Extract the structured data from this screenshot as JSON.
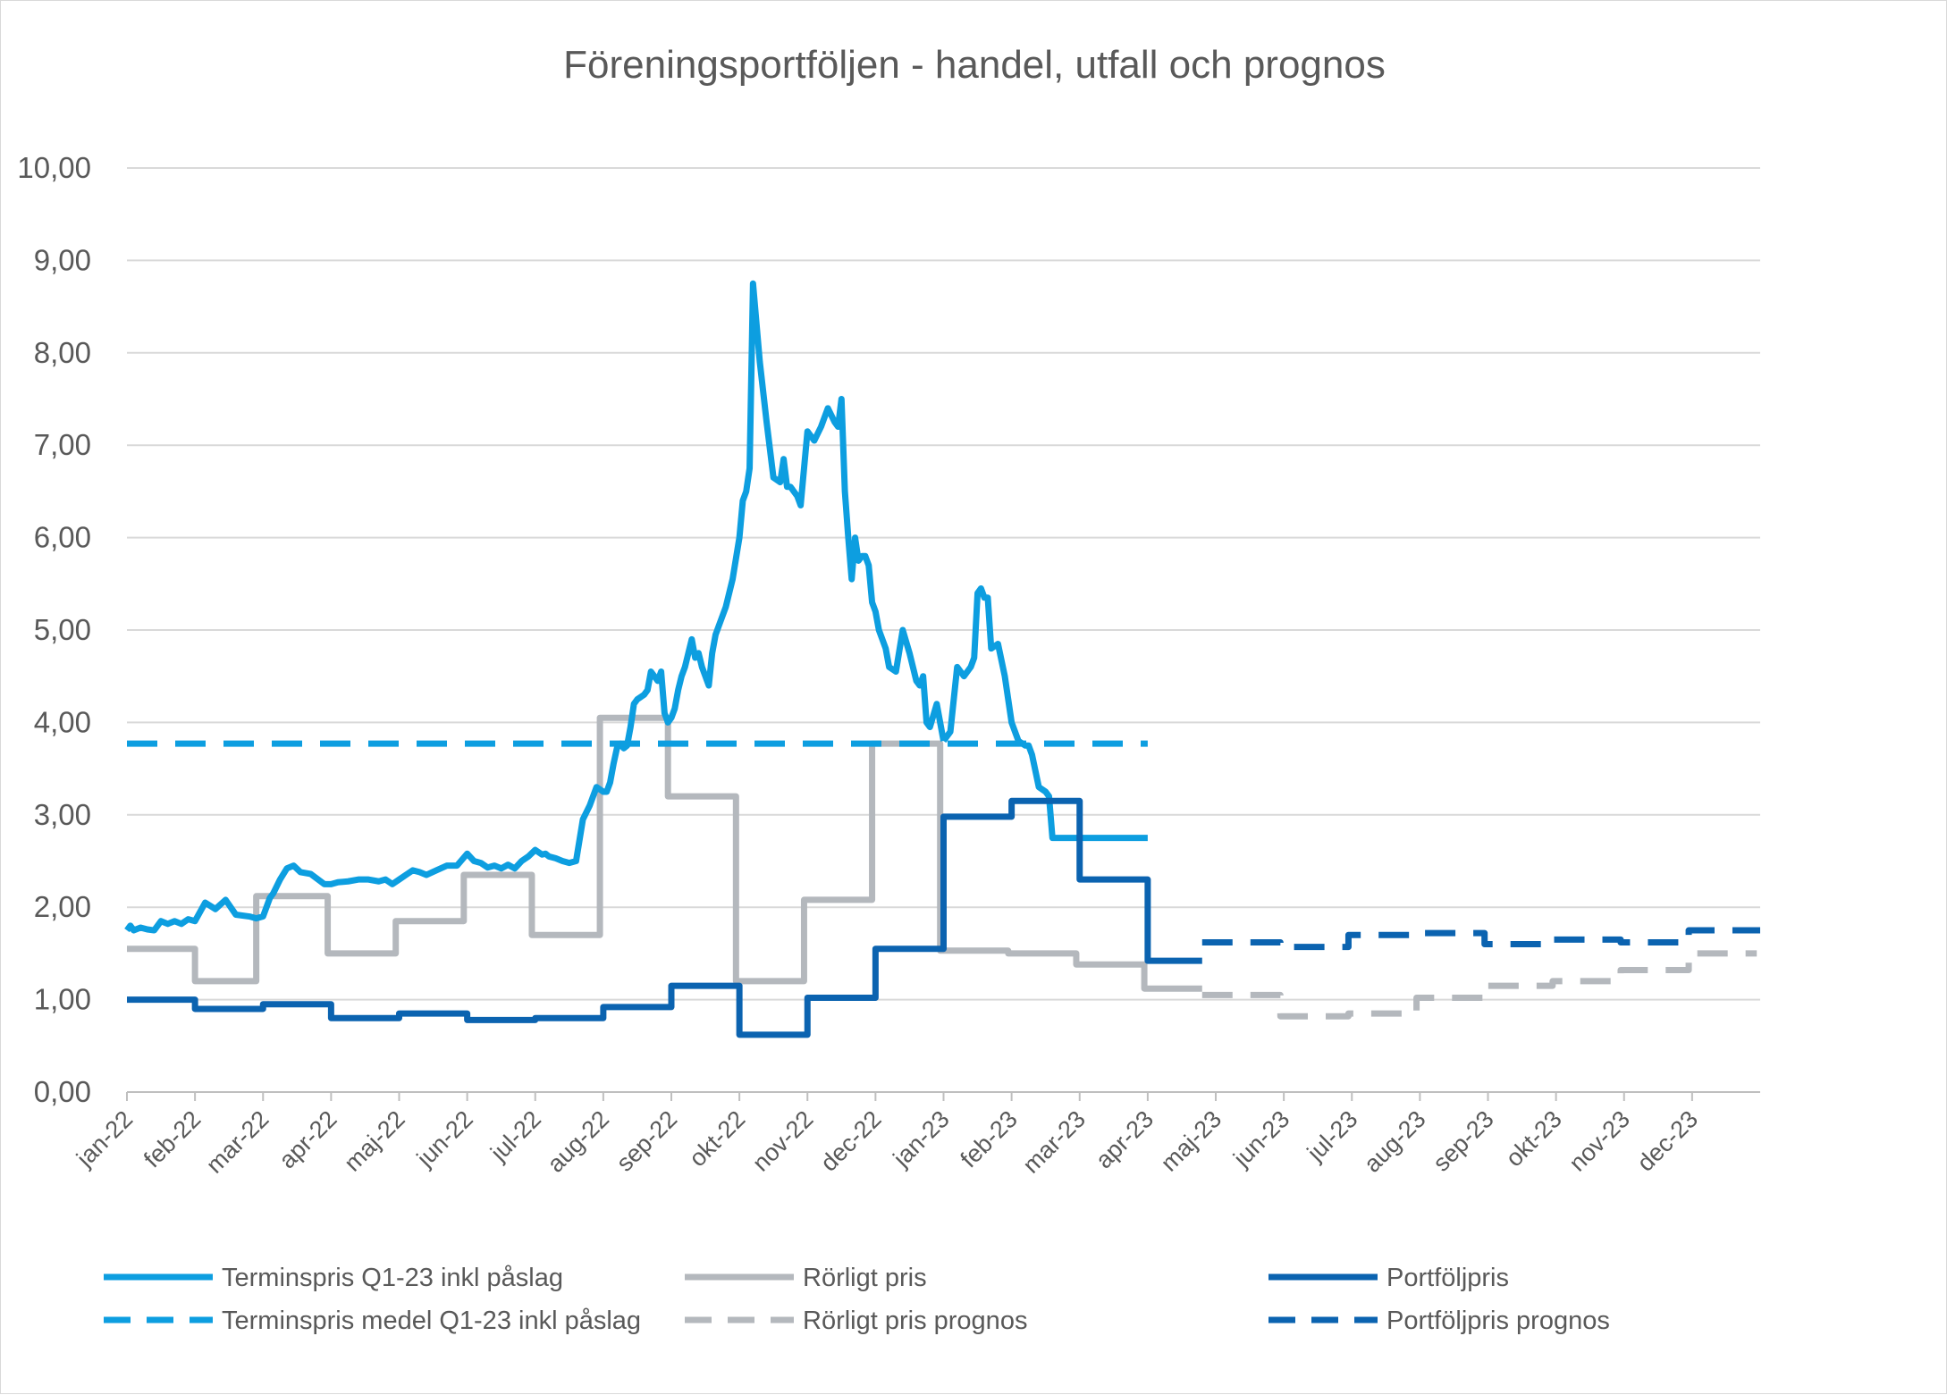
{
  "chart_data": {
    "type": "line",
    "title": "Föreningsportföljen - handel, utfall och prognos",
    "xlabel": "",
    "ylabel": "",
    "ylim": [
      0,
      10
    ],
    "grid": true,
    "legend_position": "bottom",
    "y_ticks": [
      "0,00",
      "1,00",
      "2,00",
      "3,00",
      "4,00",
      "5,00",
      "6,00",
      "7,00",
      "8,00",
      "9,00",
      "10,00"
    ],
    "x_ticks": [
      "jan-22",
      "feb-22",
      "mar-22",
      "apr-22",
      "maj-22",
      "jun-22",
      "jul-22",
      "aug-22",
      "sep-22",
      "okt-22",
      "nov-22",
      "dec-22",
      "jan-23",
      "feb-23",
      "mar-23",
      "apr-23",
      "maj-23",
      "jun-23",
      "jul-23",
      "aug-23",
      "sep-23",
      "okt-23",
      "nov-23",
      "dec-23"
    ],
    "series": [
      {
        "name": "Terminspris Q1-23 inkl påslag",
        "color": "#0d9ee0",
        "style": "solid",
        "x": [
          0.0,
          0.05,
          0.1,
          0.2,
          0.3,
          0.4,
          0.5,
          0.6,
          0.7,
          0.8,
          0.9,
          1.0,
          1.15,
          1.3,
          1.45,
          1.6,
          1.8,
          1.9,
          2.0,
          2.1,
          2.15,
          2.25,
          2.35,
          2.45,
          2.55,
          2.7,
          2.9,
          3.0,
          3.1,
          3.25,
          3.4,
          3.55,
          3.7,
          3.8,
          3.9,
          4.0,
          4.1,
          4.2,
          4.3,
          4.4,
          4.55,
          4.7,
          4.85,
          5.0,
          5.1,
          5.2,
          5.3,
          5.4,
          5.5,
          5.6,
          5.7,
          5.8,
          5.9,
          6.0,
          6.1,
          6.15,
          6.2,
          6.3,
          6.4,
          6.5,
          6.6,
          6.7,
          6.8,
          6.9,
          7.0,
          7.05,
          7.1,
          7.15,
          7.2,
          7.25,
          7.3,
          7.35,
          7.4,
          7.45,
          7.5,
          7.6,
          7.65,
          7.7,
          7.75,
          7.8,
          7.85,
          7.9,
          7.95,
          8.0,
          8.05,
          8.1,
          8.15,
          8.2,
          8.25,
          8.3,
          8.35,
          8.4,
          8.45,
          8.5,
          8.55,
          8.6,
          8.65,
          8.7,
          8.8,
          8.9,
          9.0,
          9.05,
          9.1,
          9.15,
          9.2,
          9.3,
          9.4,
          9.5,
          9.6,
          9.65,
          9.7,
          9.75,
          9.8,
          9.85,
          9.9,
          10.0,
          10.1,
          10.2,
          10.3,
          10.4,
          10.45,
          10.5,
          10.55,
          10.6,
          10.65,
          10.7,
          10.75,
          10.8,
          10.85,
          10.9,
          10.95,
          11.0,
          11.05,
          11.1,
          11.15,
          11.2,
          11.3,
          11.4,
          11.5,
          11.55,
          11.6,
          11.65,
          11.7,
          11.75,
          11.8,
          11.9,
          12.0
        ],
        "values": [
          1.75,
          1.8,
          1.75,
          1.78,
          1.76,
          1.75,
          1.85,
          1.82,
          1.85,
          1.82,
          1.87,
          1.85,
          2.05,
          1.98,
          2.08,
          1.92,
          1.9,
          1.88,
          1.9,
          2.1,
          2.15,
          2.3,
          2.42,
          2.45,
          2.38,
          2.36,
          2.25,
          2.25,
          2.27,
          2.28,
          2.3,
          2.3,
          2.28,
          2.3,
          2.25,
          2.3,
          2.35,
          2.4,
          2.38,
          2.35,
          2.4,
          2.45,
          2.45,
          2.58,
          2.5,
          2.48,
          2.43,
          2.45,
          2.42,
          2.46,
          2.42,
          2.5,
          2.55,
          2.62,
          2.57,
          2.58,
          2.55,
          2.53,
          2.5,
          2.48,
          2.5,
          2.95,
          3.1,
          3.3,
          3.25,
          3.25,
          3.35,
          3.55,
          3.72,
          3.77,
          3.72,
          3.75,
          3.95,
          4.2,
          4.25,
          4.3,
          4.35,
          4.55,
          4.5,
          4.45,
          4.55,
          4.1,
          4.0,
          4.05,
          4.15,
          4.35,
          4.5,
          4.6,
          4.75,
          4.9,
          4.7,
          4.75,
          4.6,
          4.5,
          4.4,
          4.75,
          4.95,
          5.05,
          5.25,
          5.55,
          6.0,
          6.4,
          6.5,
          6.75,
          8.75,
          7.9,
          7.25,
          6.65,
          6.6,
          6.85,
          6.55,
          6.55,
          6.5,
          6.45,
          6.35,
          7.15,
          7.05,
          7.2,
          7.4,
          7.25,
          7.2,
          7.5,
          6.5,
          6.0,
          5.55,
          6.0,
          5.75,
          5.8,
          5.8,
          5.7,
          5.3,
          5.2,
          5.0,
          4.9,
          4.8,
          4.6,
          4.55,
          5.0,
          4.75,
          4.6,
          4.45,
          4.4,
          4.5,
          4.0,
          3.95,
          4.2,
          3.8
        ],
        "x2": [
          12.0,
          12.1,
          12.2,
          12.3,
          12.4,
          12.45,
          12.5,
          12.55,
          12.6,
          12.65,
          12.7,
          12.8,
          12.9,
          13.0,
          13.05,
          13.1,
          13.2,
          13.25,
          13.3,
          13.4,
          13.5,
          13.55,
          13.6,
          13.65,
          13.7,
          13.75,
          13.8,
          13.85,
          13.9,
          13.95,
          14.0,
          14.05,
          14.1,
          14.15,
          14.2,
          14.25,
          14.3,
          14.35,
          14.4,
          14.45,
          14.5,
          14.6,
          14.7,
          14.8,
          14.9,
          14.95,
          15.0
        ],
        "values2": [
          3.8,
          3.9,
          4.6,
          4.5,
          4.6,
          4.7,
          5.4,
          5.45,
          5.35,
          5.35,
          4.8,
          4.85,
          4.5,
          4.0,
          3.9,
          3.8,
          3.75,
          3.75,
          3.65,
          3.3,
          3.25,
          3.2,
          2.75,
          2.75,
          2.75,
          2.75,
          2.75,
          2.75,
          2.75,
          2.75,
          2.75,
          2.75,
          2.75,
          2.75,
          2.75,
          2.75,
          2.75,
          2.75,
          2.75,
          2.75,
          2.75,
          2.75,
          2.75,
          2.75,
          2.75,
          2.75,
          2.75
        ]
      },
      {
        "name": "Terminspris medel Q1-23 inkl påslag",
        "color": "#0d9ee0",
        "style": "dashed",
        "x": [
          0,
          15
        ],
        "values": [
          3.77,
          3.77
        ]
      },
      {
        "name": "Rörligt pris",
        "color": "#b4b8bd",
        "style": "solid",
        "steps": [
          {
            "x": [
              0,
              1
            ],
            "value": 1.55
          },
          {
            "x": [
              1,
              1.9
            ],
            "value": 1.2
          },
          {
            "x": [
              1.9,
              2.95
            ],
            "value": 2.12
          },
          {
            "x": [
              2.95,
              3.95
            ],
            "value": 1.5
          },
          {
            "x": [
              3.95,
              4.95
            ],
            "value": 1.85
          },
          {
            "x": [
              4.95,
              5.95
            ],
            "value": 2.35
          },
          {
            "x": [
              5.95,
              6.95
            ],
            "value": 1.7
          },
          {
            "x": [
              6.95,
              7.95
            ],
            "value": 4.05
          },
          {
            "x": [
              7.95,
              8.95
            ],
            "value": 3.2
          },
          {
            "x": [
              8.95,
              9.95
            ],
            "value": 1.2
          },
          {
            "x": [
              9.95,
              10.95
            ],
            "value": 2.08
          },
          {
            "x": [
              10.95,
              11.95
            ],
            "value": 3.77
          },
          {
            "x": [
              11.95,
              12.95
            ],
            "value": 1.53
          },
          {
            "x": [
              12.95,
              13.95
            ],
            "value": 1.5
          },
          {
            "x": [
              13.95,
              14.95
            ],
            "value": 1.38
          },
          {
            "x": [
              14.95,
              15.8
            ],
            "value": 1.12
          }
        ]
      },
      {
        "name": "Rörligt pris prognos",
        "color": "#b4b8bd",
        "style": "dashed",
        "steps": [
          {
            "x": [
              15.8,
              16.95
            ],
            "value": 1.05
          },
          {
            "x": [
              16.95,
              17.95
            ],
            "value": 0.82
          },
          {
            "x": [
              17.95,
              18.95
            ],
            "value": 0.85
          },
          {
            "x": [
              18.95,
              19.95
            ],
            "value": 1.02
          },
          {
            "x": [
              19.95,
              20.95
            ],
            "value": 1.15
          },
          {
            "x": [
              20.95,
              21.95
            ],
            "value": 1.2
          },
          {
            "x": [
              21.95,
              22.95
            ],
            "value": 1.32
          },
          {
            "x": [
              22.95,
              23.95
            ],
            "value": 1.5
          }
        ]
      },
      {
        "name": "Portföljpris",
        "color": "#0b63b0",
        "style": "solid",
        "steps": [
          {
            "x": [
              0,
              1
            ],
            "value": 1.0
          },
          {
            "x": [
              1,
              2
            ],
            "value": 0.9
          },
          {
            "x": [
              2,
              3
            ],
            "value": 0.95
          },
          {
            "x": [
              3,
              4
            ],
            "value": 0.8
          },
          {
            "x": [
              4,
              5
            ],
            "value": 0.85
          },
          {
            "x": [
              5,
              6
            ],
            "value": 0.78
          },
          {
            "x": [
              6,
              7
            ],
            "value": 0.8
          },
          {
            "x": [
              7,
              8
            ],
            "value": 0.92
          },
          {
            "x": [
              8,
              9
            ],
            "value": 1.15
          },
          {
            "x": [
              9,
              10
            ],
            "value": 0.62
          },
          {
            "x": [
              10,
              11
            ],
            "value": 1.02
          },
          {
            "x": [
              11,
              12
            ],
            "value": 1.55
          },
          {
            "x": [
              12,
              13
            ],
            "value": 2.98
          },
          {
            "x": [
              13,
              14
            ],
            "value": 3.15
          },
          {
            "x": [
              14,
              15
            ],
            "value": 2.3
          },
          {
            "x": [
              15,
              15.8
            ],
            "value": 1.42
          }
        ]
      },
      {
        "name": "Portföljpris prognos",
        "color": "#0b63b0",
        "style": "dashed",
        "steps": [
          {
            "x": [
              15.8,
              16.95
            ],
            "value": 1.62
          },
          {
            "x": [
              16.95,
              17.95
            ],
            "value": 1.57
          },
          {
            "x": [
              17.95,
              18.95
            ],
            "value": 1.7
          },
          {
            "x": [
              18.95,
              19.95
            ],
            "value": 1.72
          },
          {
            "x": [
              19.95,
              20.95
            ],
            "value": 1.6
          },
          {
            "x": [
              20.95,
              21.95
            ],
            "value": 1.65
          },
          {
            "x": [
              21.95,
              22.95
            ],
            "value": 1.62
          },
          {
            "x": [
              22.95,
              24
            ],
            "value": 1.75
          }
        ]
      }
    ]
  }
}
